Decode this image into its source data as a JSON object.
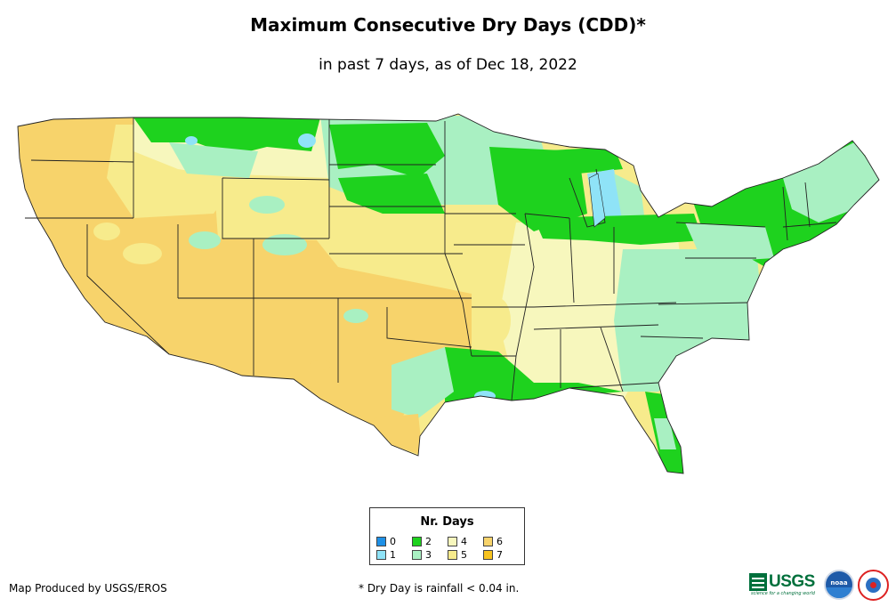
{
  "title": "Maximum Consecutive Dry Days (CDD)*",
  "subtitle": "in past 7 days, as of Dec 18, 2022",
  "legend": {
    "title": "Nr. Days",
    "items": [
      {
        "label": "0",
        "color": "#1e90e6"
      },
      {
        "label": "1",
        "color": "#8fe3f7"
      },
      {
        "label": "2",
        "color": "#1ed21e"
      },
      {
        "label": "3",
        "color": "#a9f0c2"
      },
      {
        "label": "4",
        "color": "#f7f7bd"
      },
      {
        "label": "5",
        "color": "#f7eb8c"
      },
      {
        "label": "6",
        "color": "#f7d36b"
      },
      {
        "label": "7",
        "color": "#f7c31e"
      }
    ]
  },
  "colors": {
    "day1": "#8fe3f7",
    "day2": "#1ed21e",
    "day3": "#a9f0c2",
    "day4": "#f7f7bd",
    "day5": "#f7eb8c",
    "day6": "#f7d36b",
    "border": "#222222"
  },
  "credit": "Map Produced by USGS/EROS",
  "footnote": "* Dry Day is rainfall < 0.04 in.",
  "logos": {
    "usgs": "USGS",
    "usgs_tagline": "science for a changing world",
    "noaa": "noaa"
  }
}
